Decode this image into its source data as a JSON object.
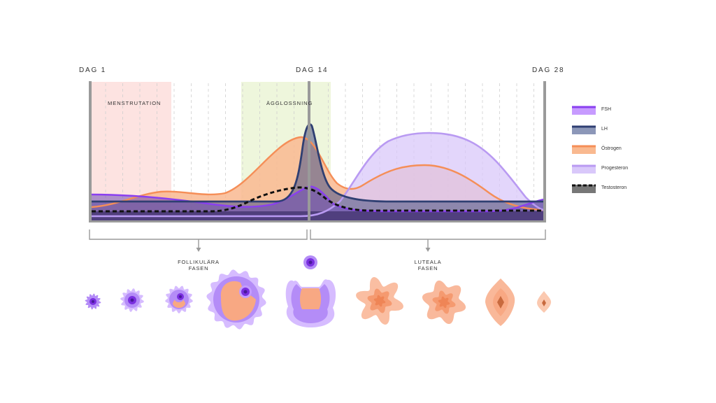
{
  "days": {
    "start": "DAG 1",
    "ovulation": "DAG 14",
    "end": "DAG 28"
  },
  "regions": {
    "menstruation": {
      "label": "MENSTRUTATION",
      "color": "#fde3e1"
    },
    "ovulation": {
      "label": "ÄGGLOSSNING",
      "color": "#eef6dc"
    }
  },
  "phases": {
    "follicular": {
      "line1": "FOLLIKULÄRA",
      "line2": "FASEN"
    },
    "luteal": {
      "line1": "LUTEALA",
      "line2": "FASEN"
    }
  },
  "legend": [
    {
      "id": "fsh",
      "label": "FSH",
      "line": "#8a3ff0",
      "fill": "#c79bff",
      "dashed": false
    },
    {
      "id": "lh",
      "label": "LH",
      "line": "#2f3f72",
      "fill": "#8c97b8",
      "dashed": false
    },
    {
      "id": "ostrogen",
      "label": "Östrogen",
      "line": "#f58e57",
      "fill": "#f9b990",
      "dashed": false
    },
    {
      "id": "progesteron",
      "label": "Progesteron",
      "line": "#b99af2",
      "fill": "#d9c8fa",
      "dashed": false
    },
    {
      "id": "testosteron",
      "label": "Testosteron",
      "line": "#111111",
      "fill": "#777777",
      "dashed": true
    }
  ],
  "chart_data": {
    "type": "area",
    "x_ticks": [
      "DAG 1",
      "DAG 14",
      "DAG 28"
    ],
    "series": [
      {
        "name": "FSH"
      },
      {
        "name": "LH"
      },
      {
        "name": "Östrogen"
      },
      {
        "name": "Progesteron"
      },
      {
        "name": "Testosteron"
      }
    ]
  },
  "colors": {
    "axis": "#9a9a9a",
    "baseline_fill": "#4b3b78",
    "follicle_purple": "#b48cf7",
    "follicle_dark": "#7a2fe0",
    "corpus_orange": "#f8a883",
    "corpus_dark": "#c86a3e"
  }
}
